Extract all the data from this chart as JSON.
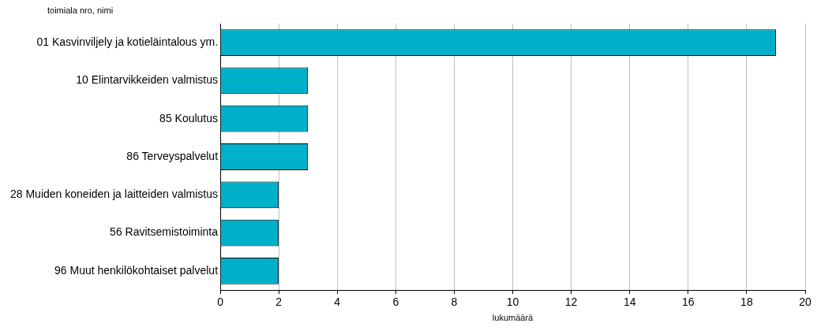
{
  "chart_data": {
    "type": "bar",
    "orientation": "horizontal",
    "ylabel": "toimiala nro, nimi",
    "xlabel": "lukumäärä",
    "categories": [
      "01 Kasvinviljely ja kotieläintalous ym.",
      "10 Elintarvikkeiden valmistus",
      "85 Koulutus",
      "86 Terveyspalvelut",
      "28 Muiden koneiden ja laitteiden valmistus",
      "56 Ravitsemistoiminta",
      "96 Muut henkilökohtaiset palvelut"
    ],
    "values": [
      19,
      3,
      3,
      3,
      2,
      2,
      2
    ],
    "color": "#00b0c8",
    "xlim": [
      0,
      20
    ],
    "xticks": [
      0,
      2,
      4,
      6,
      8,
      10,
      12,
      14,
      16,
      18,
      20
    ],
    "grid": "x",
    "legend": false
  }
}
